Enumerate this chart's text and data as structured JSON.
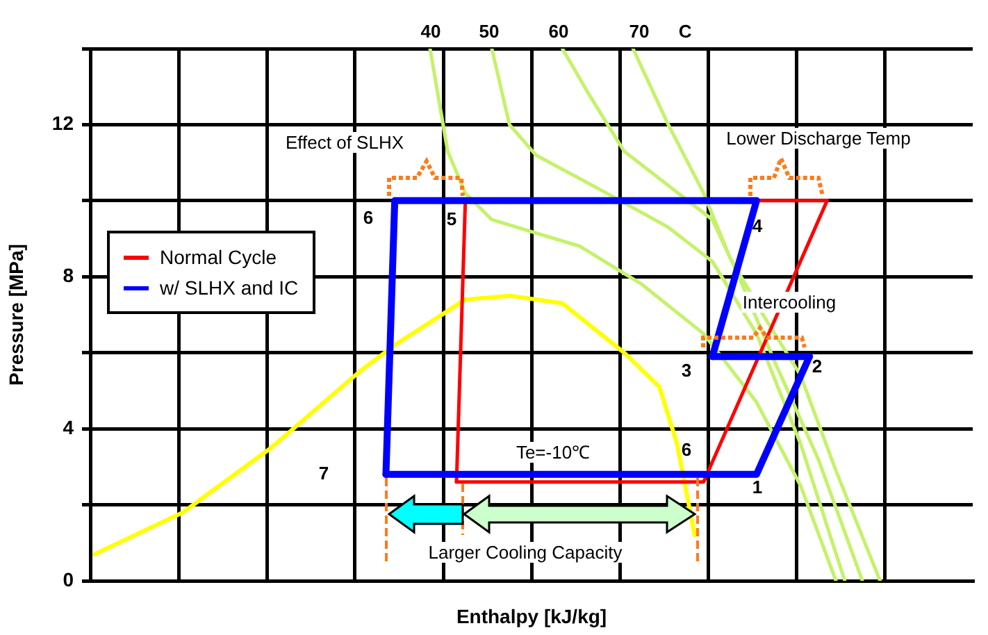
{
  "chart_data": {
    "type": "line",
    "xlabel": "Enthalpy [kJ/kg]",
    "ylabel": "Pressure [MPa]",
    "categories": [
      null,
      null,
      null,
      null,
      null,
      null,
      null,
      null,
      null,
      null,
      null,
      null,
      null,
      null,
      null,
      null,
      null,
      null,
      null,
      null,
      null,
      null,
      null,
      null,
      null,
      null,
      null,
      null,
      null,
      null,
      null,
      null,
      null,
      null,
      null,
      null,
      null,
      null,
      null,
      null,
      null,
      null,
      null,
      null,
      null,
      null,
      null,
      null,
      null,
      null,
      null,
      null,
      null,
      null,
      null,
      null,
      null,
      null,
      null,
      null,
      null,
      null,
      null,
      null,
      null,
      null,
      null,
      null,
      null,
      null,
      null,
      null,
      null,
      null,
      null,
      null,
      null,
      null,
      null,
      null,
      null,
      null,
      null,
      null,
      null,
      null,
      null,
      null,
      null,
      null,
      null,
      null,
      null,
      null,
      null,
      null,
      null,
      null,
      null,
      null
    ],
    "ylim": [
      0,
      14
    ],
    "yticks": [
      0,
      {
        "value": 2,
        "label": null
      },
      4,
      {
        "value": 6,
        "label": null
      },
      8,
      {
        "value": 10,
        "label": null
      },
      12,
      {
        "value": 14,
        "label": null
      }
    ],
    "tick_labels": "y",
    "grid": true,
    "legend": "left",
    "marker": "none",
    "line_style": "solid",
    "series": [
      {
        "name": "Normal Cycle",
        "color": "#ff0000",
        "values": [
          null,
          null,
          null,
          null,
          null,
          null,
          null,
          null,
          null,
          null,
          null,
          null,
          null,
          null,
          null,
          null,
          null,
          null,
          null,
          null,
          null,
          null,
          null,
          null,
          null,
          null,
          null,
          null,
          null,
          null,
          null,
          null,
          null,
          null,
          null,
          null,
          null,
          null,
          null,
          null,
          null,
          2.6,
          10,
          null,
          null,
          null,
          null,
          null,
          null,
          null,
          null,
          null,
          null,
          null,
          null,
          null,
          null,
          null,
          null,
          null,
          null,
          null,
          null,
          null,
          null,
          null,
          null,
          null,
          null,
          null,
          null,
          null,
          null,
          null,
          null,
          null,
          null,
          null,
          null,
          null,
          null,
          null,
          null,
          10,
          null,
          null,
          null,
          null,
          null,
          null,
          null,
          null,
          null,
          null,
          null,
          null,
          null,
          null,
          null,
          null
        ]
      },
      {
        "name": "w/ SLHX and IC",
        "color": "#0000ff",
        "values": [
          null,
          null,
          null,
          null,
          null,
          null,
          null,
          null,
          null,
          null,
          null,
          null,
          null,
          null,
          null,
          null,
          null,
          null,
          null,
          null,
          null,
          null,
          null,
          null,
          null,
          null,
          null,
          null,
          null,
          null,
          null,
          null,
          null,
          2.8,
          10,
          null,
          null,
          null,
          null,
          null,
          null,
          null,
          null,
          null,
          null,
          null,
          null,
          null,
          null,
          null,
          null,
          null,
          null,
          null,
          null,
          null,
          null,
          null,
          null,
          null,
          null,
          null,
          null,
          null,
          null,
          null,
          null,
          null,
          null,
          null,
          null,
          null,
          null,
          null,
          null,
          10,
          null,
          null,
          null,
          null,
          null,
          null,
          null,
          null,
          null,
          null,
          null,
          null,
          null,
          null,
          null,
          null,
          null,
          null,
          null,
          null,
          null,
          null,
          null,
          null
        ]
      },
      {
        "color": "#ff0000",
        "values": [
          null,
          null,
          null,
          null,
          null,
          null,
          null,
          null,
          null,
          null,
          null,
          null,
          null,
          null,
          null,
          null,
          null,
          null,
          null,
          null,
          null,
          null,
          null,
          null,
          null,
          null,
          null,
          null,
          null,
          null,
          null,
          null,
          null,
          null,
          null,
          null,
          null,
          null,
          null,
          null,
          null,
          2.6,
          null,
          null,
          null,
          null,
          null,
          null,
          null,
          null,
          null,
          null,
          null,
          null,
          null,
          null,
          null,
          null,
          null,
          null,
          null,
          null,
          null,
          null,
          null,
          null,
          null,
          null,
          null,
          2.6,
          null,
          null,
          null,
          null,
          null,
          null,
          null,
          null,
          null,
          null,
          null,
          null,
          null,
          10,
          null,
          null,
          null,
          null,
          null,
          null,
          null,
          null,
          null,
          null,
          null,
          null,
          null,
          null,
          null,
          null
        ]
      },
      {
        "color": "#0000ff",
        "values": [
          null,
          null,
          null,
          null,
          null,
          null,
          null,
          null,
          null,
          null,
          null,
          null,
          null,
          null,
          null,
          null,
          null,
          null,
          null,
          null,
          null,
          null,
          null,
          null,
          null,
          null,
          null,
          null,
          null,
          null,
          null,
          null,
          null,
          2.8,
          null,
          null,
          null,
          null,
          null,
          null,
          null,
          null,
          null,
          null,
          null,
          null,
          null,
          null,
          null,
          null,
          null,
          null,
          null,
          null,
          null,
          null,
          null,
          null,
          null,
          null,
          null,
          null,
          null,
          null,
          null,
          null,
          null,
          null,
          null,
          null,
          null,
          null,
          null,
          null,
          null,
          2.8,
          null,
          null,
          null,
          null,
          null,
          5.9,
          null,
          null,
          null,
          null,
          null,
          null,
          null,
          null,
          null,
          null,
          null,
          null,
          null,
          null,
          null,
          null,
          null,
          null
        ]
      },
      {
        "color": "#0000ff",
        "values": [
          null,
          null,
          null,
          null,
          null,
          null,
          null,
          null,
          null,
          null,
          null,
          null,
          null,
          null,
          null,
          null,
          null,
          null,
          null,
          null,
          null,
          null,
          null,
          null,
          null,
          null,
          null,
          null,
          null,
          null,
          null,
          null,
          null,
          null,
          null,
          null,
          null,
          null,
          null,
          null,
          null,
          null,
          null,
          null,
          null,
          null,
          null,
          null,
          null,
          null,
          null,
          null,
          null,
          null,
          null,
          null,
          null,
          null,
          null,
          null,
          null,
          null,
          null,
          null,
          null,
          null,
          null,
          null,
          null,
          null,
          5.9,
          null,
          null,
          null,
          null,
          10,
          null,
          null,
          null,
          null,
          null,
          null,
          null,
          null,
          null,
          null,
          null,
          null,
          null,
          null,
          null,
          null,
          null,
          null,
          null,
          null,
          null,
          null,
          null,
          null
        ]
      },
      {
        "color": "#0000ff",
        "values": [
          null,
          null,
          null,
          null,
          null,
          null,
          null,
          null,
          null,
          null,
          null,
          null,
          null,
          null,
          null,
          null,
          null,
          null,
          null,
          null,
          null,
          null,
          null,
          null,
          null,
          null,
          null,
          null,
          null,
          null,
          null,
          null,
          null,
          null,
          null,
          null,
          null,
          null,
          null,
          null,
          null,
          null,
          null,
          null,
          null,
          null,
          null,
          null,
          null,
          null,
          null,
          null,
          null,
          null,
          null,
          null,
          null,
          null,
          null,
          null,
          null,
          null,
          null,
          null,
          null,
          null,
          null,
          null,
          null,
          null,
          5.9,
          null,
          null,
          null,
          null,
          null,
          null,
          null,
          null,
          null,
          null,
          5.9,
          null,
          null,
          null,
          null,
          null,
          null,
          null,
          null,
          null,
          null,
          null,
          null,
          null,
          null,
          null,
          null,
          null,
          null
        ]
      },
      {
        "color": "#ffff00",
        "values": [
          0.7,
          null,
          null,
          null,
          null,
          null,
          null,
          null,
          null,
          null,
          1.8,
          null,
          null,
          null,
          null,
          null,
          null,
          null,
          null,
          null,
          3.5,
          null,
          null,
          null,
          null,
          null,
          null,
          null,
          null,
          null,
          5.5,
          null,
          null,
          null,
          6.2,
          null,
          null,
          null,
          null,
          null,
          null,
          null,
          7.4,
          null,
          null,
          null,
          null,
          7.5,
          null,
          null,
          null,
          null,
          null,
          7.3,
          null,
          null,
          null,
          null,
          null,
          null,
          6.0,
          null,
          null,
          null,
          5.1,
          null,
          3.6,
          2.4,
          1.2,
          null,
          null,
          null,
          null,
          null,
          null,
          null,
          null,
          null,
          null,
          null,
          null,
          null,
          null,
          null,
          null,
          null,
          null,
          null,
          null,
          null,
          null,
          null,
          null,
          null,
          null,
          null,
          null,
          null,
          null,
          null
        ]
      },
      {
        "color": "#c4f26a",
        "values": [
          null,
          null,
          null,
          null,
          null,
          null,
          null,
          null,
          null,
          null,
          null,
          null,
          null,
          null,
          null,
          null,
          null,
          null,
          null,
          null,
          null,
          null,
          null,
          null,
          null,
          null,
          null,
          null,
          null,
          null,
          null,
          null,
          null,
          null,
          null,
          null,
          null,
          null,
          14,
          null,
          11.3,
          null,
          10.2,
          null,
          null,
          9.5,
          null,
          null,
          null,
          null,
          null,
          null,
          null,
          null,
          null,
          8.8,
          null,
          null,
          null,
          null,
          null,
          null,
          7.8,
          null,
          null,
          null,
          null,
          null,
          null,
          6.5,
          null,
          null,
          null,
          null,
          null,
          4.7,
          null,
          null,
          null,
          null,
          2.5,
          null,
          null,
          null,
          0,
          null,
          null,
          null,
          null,
          null,
          null,
          null,
          null,
          null,
          null,
          null,
          null,
          null,
          null,
          null
        ]
      },
      {
        "color": "#c4f26a",
        "values": [
          null,
          null,
          null,
          null,
          null,
          null,
          null,
          null,
          null,
          null,
          null,
          null,
          null,
          null,
          null,
          null,
          null,
          null,
          null,
          null,
          null,
          null,
          null,
          null,
          null,
          null,
          null,
          null,
          null,
          null,
          null,
          null,
          null,
          null,
          null,
          null,
          null,
          null,
          null,
          null,
          null,
          null,
          null,
          null,
          null,
          14,
          null,
          12,
          null,
          null,
          11.2,
          null,
          null,
          null,
          null,
          null,
          null,
          null,
          10.2,
          null,
          null,
          null,
          null,
          null,
          null,
          9.3,
          null,
          null,
          null,
          null,
          8.4,
          null,
          null,
          null,
          null,
          6.5,
          null,
          null,
          null,
          null,
          3.6,
          null,
          null,
          null,
          null,
          0,
          null,
          null,
          null,
          null,
          null,
          null,
          null,
          null,
          null,
          null,
          null,
          null,
          null,
          null
        ]
      },
      {
        "color": "#c4f26a",
        "values": [
          null,
          null,
          null,
          null,
          null,
          null,
          null,
          null,
          null,
          null,
          null,
          null,
          null,
          null,
          null,
          null,
          null,
          null,
          null,
          null,
          null,
          null,
          null,
          null,
          null,
          null,
          null,
          null,
          null,
          null,
          null,
          null,
          null,
          null,
          null,
          null,
          null,
          null,
          null,
          null,
          null,
          null,
          null,
          null,
          null,
          null,
          null,
          null,
          null,
          null,
          null,
          null,
          null,
          14,
          null,
          null,
          12.8,
          null,
          null,
          null,
          11.3,
          null,
          null,
          null,
          null,
          10.4,
          null,
          null,
          null,
          null,
          9.5,
          null,
          null,
          8.0,
          null,
          null,
          null,
          5.8,
          null,
          null,
          null,
          null,
          3.2,
          null,
          null,
          null,
          null,
          0,
          null,
          null,
          null,
          null,
          null,
          null,
          null,
          null,
          null,
          null,
          null,
          null
        ]
      },
      {
        "color": "#c4f26a",
        "values": [
          null,
          null,
          null,
          null,
          null,
          null,
          null,
          null,
          null,
          null,
          null,
          null,
          null,
          null,
          null,
          null,
          null,
          null,
          null,
          null,
          null,
          null,
          null,
          null,
          null,
          null,
          null,
          null,
          null,
          null,
          null,
          null,
          null,
          null,
          null,
          null,
          null,
          null,
          null,
          null,
          null,
          null,
          null,
          null,
          null,
          null,
          null,
          null,
          null,
          null,
          null,
          null,
          null,
          null,
          null,
          null,
          null,
          null,
          null,
          null,
          null,
          14,
          null,
          null,
          null,
          12,
          null,
          null,
          null,
          10.2,
          null,
          null,
          8.5,
          null,
          null,
          null,
          6.9,
          null,
          null,
          null,
          5.4,
          null,
          null,
          null,
          2.9,
          null,
          null,
          null,
          null,
          0,
          null,
          null,
          null,
          null,
          null,
          null,
          null,
          null,
          null,
          null
        ]
      }
    ],
    "annotations": [
      "40",
      "50",
      "60",
      "70",
      "C",
      "Effect of SLHX",
      "Lower Discharge Temp",
      "Intercooling",
      "Te=-10℃",
      "Larger Cooling Capacity",
      "6",
      "5",
      "4",
      "3",
      "2",
      "1",
      "6",
      "7"
    ]
  }
}
